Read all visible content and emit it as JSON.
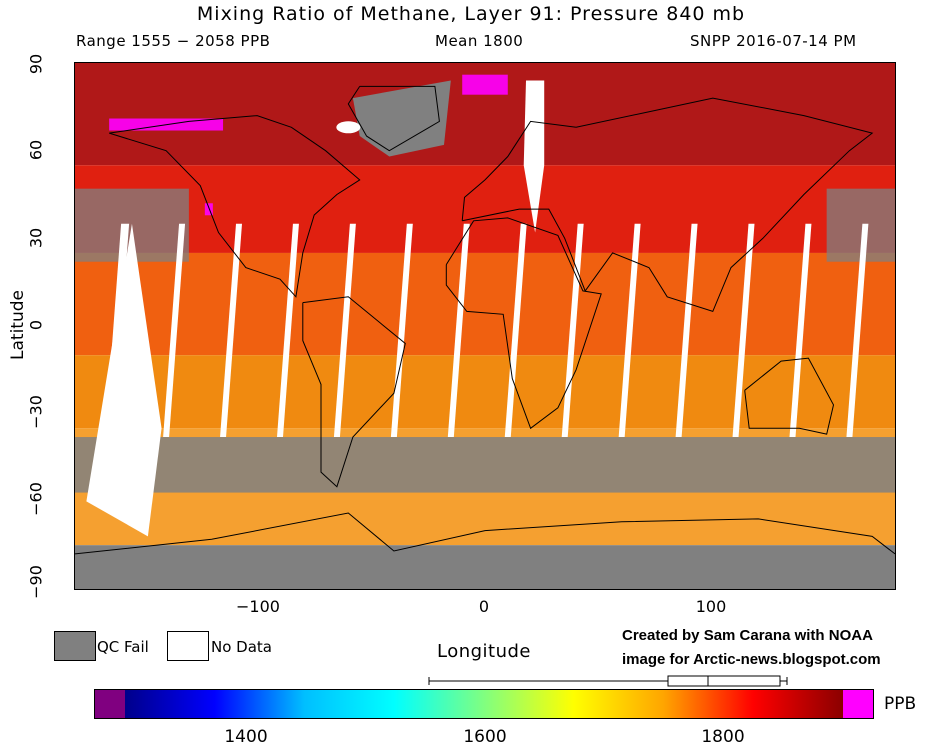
{
  "header": {
    "title": "Mixing Ratio of Methane, Layer 91: Pressure 840 mb",
    "range": "Range 1555 − 2058 PPB",
    "mean": "Mean 1800",
    "satellite": "SNPP 2016-07-14 PM"
  },
  "axes": {
    "y_title": "Latitude",
    "x_title": "Longitude",
    "y_ticks": [
      "90",
      "60",
      "30",
      "0",
      "−30",
      "−60",
      "−90"
    ],
    "x_ticks": [
      "−100",
      "0",
      "100"
    ],
    "x_range": [
      -180,
      180
    ],
    "y_range": [
      -90,
      90
    ]
  },
  "legend": {
    "qc_fail": "QC Fail",
    "no_data": "No Data",
    "qc_fail_color": "#808080",
    "no_data_color": "#ffffff"
  },
  "credit": {
    "line1": "Created by Sam Carana with NOAA",
    "line2": "image for Arctic-news.blogspot.com"
  },
  "colorbar": {
    "units": "PPB",
    "tick_labels": [
      "1400",
      "1600",
      "1800"
    ],
    "tick_values": [
      1400,
      1600,
      1800
    ],
    "low_color": "#800080",
    "high_color": "#ff00ff",
    "stops": [
      "#00008b",
      "#0000ff",
      "#00bfff",
      "#00ffff",
      "#80ff80",
      "#ffff00",
      "#ffa500",
      "#ff0000",
      "#8b0000"
    ]
  },
  "map": {
    "colors": {
      "ocean_qc": "#808080",
      "high_lat": "#b01818",
      "north_mid": "#e02010",
      "tropics": "#f06010",
      "south_mid": "#f08a10",
      "south_ocean": "#f5a030",
      "magenta": "#ff00ff",
      "coast": "#000000",
      "nodata": "#ffffff"
    }
  }
}
